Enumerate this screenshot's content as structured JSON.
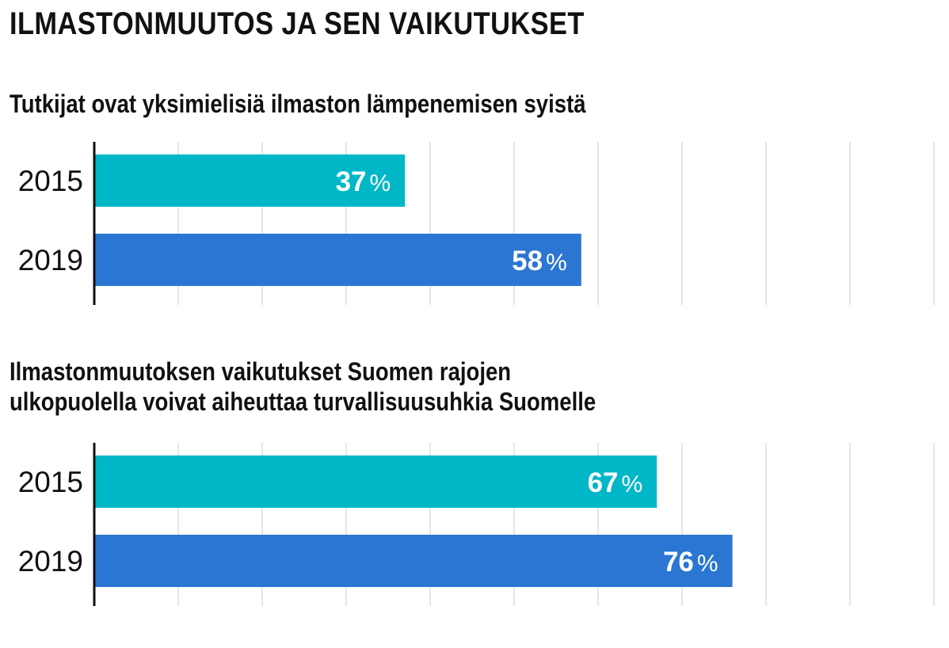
{
  "page": {
    "title": "ILMASTONMUUTOS JA SEN VAIKUTUKSET"
  },
  "colors": {
    "year_2015": "#00b7c8",
    "year_2019": "#2b76d2",
    "grid": "#cccccc",
    "axis": "#111111"
  },
  "chart_data": [
    {
      "type": "bar",
      "orientation": "horizontal",
      "title": "Tutkijat ovat yksimielisiä ilmaston lämpenemisen syistä",
      "categories": [
        "2015",
        "2019"
      ],
      "values": [
        37,
        58
      ],
      "unit": "%",
      "xlim": [
        0,
        100
      ],
      "xlabel": "",
      "ylabel": "",
      "grid": true
    },
    {
      "type": "bar",
      "orientation": "horizontal",
      "title": "Ilmastonmuutoksen vaikutukset Suomen rajojen ulkopuolella voivat aiheuttaa turvallisuusuhkia Suomelle",
      "title_lines": [
        "Ilmastonmuutoksen vaikutukset Suomen rajojen",
        "ulkopuolella voivat aiheuttaa turvallisuusuhkia Suomelle"
      ],
      "categories": [
        "2015",
        "2019"
      ],
      "values": [
        67,
        76
      ],
      "unit": "%",
      "xlim": [
        0,
        100
      ],
      "xlabel": "",
      "ylabel": "",
      "grid": true
    }
  ]
}
